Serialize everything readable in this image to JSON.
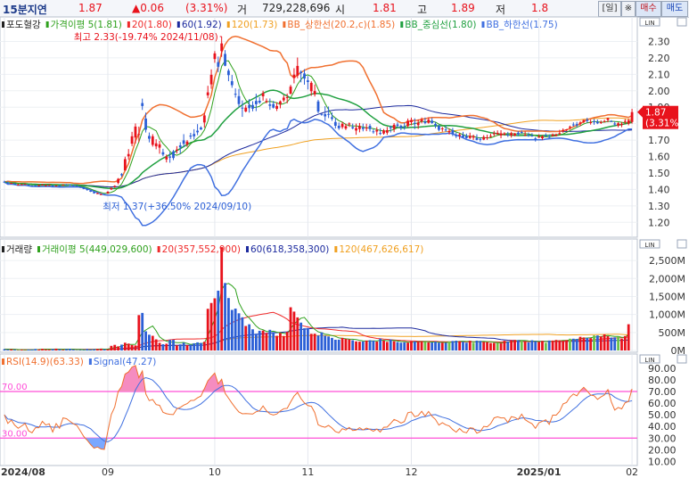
{
  "header": {
    "period": "15분지연",
    "price": "1.87",
    "change": "▲0.06",
    "change_pct": "(3.31%)",
    "volume_label": "거",
    "volume_value": "729,228,696",
    "open_label": "시",
    "open_value": "1.81",
    "high_label": "고",
    "high_value": "1.89",
    "low_label": "저",
    "low_value": "1.8",
    "buttons": [
      "[일]",
      "※",
      "매수",
      "매도"
    ]
  },
  "colors": {
    "up": "#e8121c",
    "down": "#2b5fd6",
    "ma5": "#2fa11d",
    "ma20": "#ef2a2a",
    "ma60": "#1c2a9e",
    "ma120": "#f0a020",
    "bb_upper": "#f07030",
    "bb_mid": "#20a040",
    "bb_lower": "#4070e0",
    "rsi": "#f07030",
    "signal": "#4070e0",
    "rsi_band": "#ff4fd8",
    "rsi_fill": "#f58cc0",
    "rsi_fill_low": "#7aa8ff",
    "vol_ma5": "#2fa11d"
  },
  "price_panel": {
    "legend": [
      {
        "text": "포도혈강",
        "color": "#222"
      },
      {
        "text": "가격이평 5(1.81)",
        "color": "#2fa11d"
      },
      {
        "text": "20(1.80)",
        "color": "#ef2a2a"
      },
      {
        "text": "60(1.92)",
        "color": "#1c2a9e"
      },
      {
        "text": "120(1.73)",
        "color": "#f0a020"
      },
      {
        "text": "BB_상한선(20.2,c)(1.85)",
        "color": "#f07030"
      },
      {
        "text": "BB_중심선(1.80)",
        "color": "#20a040"
      },
      {
        "text": "BB_하한선(1.75)",
        "color": "#4070e0"
      }
    ],
    "high_annotation": "최고 2.33(-19.74% 2024/11/08)",
    "low_annotation": "최저 1.37(+36.50% 2024/09/10)",
    "current_label": "1.87",
    "current_pct": "(3.31%)",
    "y_ticks": [
      "2.30",
      "2.20",
      "2.10",
      "2.00",
      "1.90",
      "1.80",
      "1.70",
      "1.60",
      "1.50",
      "1.40",
      "1.30",
      "1.20"
    ],
    "y_values": [
      2.3,
      2.2,
      2.1,
      2.0,
      1.9,
      1.8,
      1.7,
      1.6,
      1.5,
      1.4,
      1.3,
      1.2
    ],
    "ylim": [
      1.12,
      2.4
    ],
    "corner": "LIN"
  },
  "volume_panel": {
    "legend": [
      {
        "text": "거래량",
        "color": "#222"
      },
      {
        "text": "거래이평 5(449,029,600)",
        "color": "#2fa11d"
      },
      {
        "text": "20(357,552,900)",
        "color": "#ef2a2a"
      },
      {
        "text": "60(618,358,300)",
        "color": "#1c2a9e"
      },
      {
        "text": "120(467,626,617)",
        "color": "#f0a020"
      }
    ],
    "y_ticks": [
      "2,500M",
      "2,000M",
      "1,500M",
      "1,000M",
      "500M",
      "0M"
    ],
    "y_values": [
      2500,
      2000,
      1500,
      1000,
      500,
      0
    ],
    "ylim": [
      0,
      2900
    ],
    "corner": "LIN"
  },
  "rsi_panel": {
    "legend": [
      {
        "text": "RSI(14.9)(63.33)",
        "color": "#f07030"
      },
      {
        "text": "Signal(47.27)",
        "color": "#4070e0"
      }
    ],
    "band_high_label": "70.00",
    "band_low_label": "30.00",
    "y_ticks": [
      "90.00",
      "80.00",
      "70.00",
      "60.00",
      "50.00",
      "40.00",
      "30.00",
      "20.00",
      "10.00"
    ],
    "y_values": [
      90,
      80,
      70,
      60,
      50,
      40,
      30,
      20,
      10
    ],
    "ylim": [
      8,
      96
    ],
    "corner": "LIN"
  },
  "x_axis": {
    "labels": [
      {
        "text": "2024/08",
        "index": 0
      },
      {
        "text": "09",
        "index": 30
      },
      {
        "text": "10",
        "index": 61
      },
      {
        "text": "11",
        "index": 88
      },
      {
        "text": "12",
        "index": 118
      },
      {
        "text": "2025/01",
        "index": 155
      },
      {
        "text": "02",
        "index": 182
      }
    ]
  },
  "chart_data": {
    "type": "candlestick",
    "ohlc": [
      [
        1.447,
        1.453,
        1.439,
        1.445
      ],
      [
        1.442,
        1.448,
        1.433,
        1.436
      ],
      [
        1.437,
        1.44,
        1.434,
        1.439
      ],
      [
        1.435,
        1.438,
        1.43,
        1.433
      ],
      [
        1.428,
        1.434,
        1.425,
        1.429
      ],
      [
        1.43,
        1.434,
        1.428,
        1.431
      ],
      [
        1.431,
        1.434,
        1.429,
        1.433
      ],
      [
        1.428,
        1.432,
        1.422,
        1.424
      ],
      [
        1.423,
        1.425,
        1.42,
        1.421
      ],
      [
        1.426,
        1.427,
        1.423,
        1.425
      ],
      [
        1.423,
        1.431,
        1.42,
        1.425
      ],
      [
        1.427,
        1.433,
        1.424,
        1.43
      ],
      [
        1.424,
        1.431,
        1.418,
        1.426
      ],
      [
        1.425,
        1.43,
        1.423,
        1.427
      ],
      [
        1.424,
        1.427,
        1.415,
        1.417
      ],
      [
        1.419,
        1.426,
        1.417,
        1.424
      ],
      [
        1.424,
        1.427,
        1.416,
        1.418
      ],
      [
        1.425,
        1.431,
        1.424,
        1.428
      ],
      [
        1.43,
        1.433,
        1.425,
        1.427
      ],
      [
        1.427,
        1.431,
        1.422,
        1.424
      ],
      [
        1.425,
        1.429,
        1.42,
        1.421
      ],
      [
        1.422,
        1.426,
        1.416,
        1.419
      ],
      [
        1.417,
        1.422,
        1.408,
        1.412
      ],
      [
        1.414,
        1.416,
        1.401,
        1.403
      ],
      [
        1.402,
        1.406,
        1.392,
        1.396
      ],
      [
        1.393,
        1.395,
        1.384,
        1.386
      ],
      [
        1.384,
        1.39,
        1.374,
        1.376
      ],
      [
        1.375,
        1.381,
        1.372,
        1.377
      ],
      [
        1.371,
        1.376,
        1.367,
        1.371
      ],
      [
        1.371,
        1.373,
        1.37,
        1.37
      ],
      [
        1.376,
        1.389,
        1.373,
        1.386
      ],
      [
        1.4,
        1.412,
        1.396,
        1.408
      ],
      [
        1.416,
        1.425,
        1.41,
        1.421
      ],
      [
        1.44,
        1.469,
        1.431,
        1.464
      ],
      [
        1.493,
        1.499,
        1.476,
        1.486
      ],
      [
        1.515,
        1.599,
        1.515,
        1.584
      ],
      [
        1.601,
        1.645,
        1.58,
        1.615
      ],
      [
        1.678,
        1.75,
        1.663,
        1.723
      ],
      [
        1.715,
        1.801,
        1.679,
        1.782
      ],
      [
        1.735,
        1.782,
        1.687,
        1.737
      ],
      [
        1.925,
        1.952,
        1.883,
        1.907
      ],
      [
        1.831,
        1.867,
        1.746,
        1.763
      ],
      [
        1.725,
        1.746,
        1.686,
        1.708
      ],
      [
        1.671,
        1.736,
        1.66,
        1.723
      ],
      [
        1.662,
        1.705,
        1.644,
        1.68
      ],
      [
        1.654,
        1.695,
        1.617,
        1.674
      ],
      [
        1.626,
        1.647,
        1.602,
        1.612
      ],
      [
        1.582,
        1.612,
        1.564,
        1.599
      ],
      [
        1.6,
        1.627,
        1.562,
        1.593
      ],
      [
        1.631,
        1.64,
        1.578,
        1.591
      ],
      [
        1.636,
        1.663,
        1.618,
        1.642
      ],
      [
        1.668,
        1.687,
        1.617,
        1.655
      ],
      [
        1.698,
        1.736,
        1.656,
        1.677
      ],
      [
        1.673,
        1.7,
        1.659,
        1.691
      ],
      [
        1.727,
        1.744,
        1.706,
        1.721
      ],
      [
        1.737,
        1.766,
        1.703,
        1.723
      ],
      [
        1.757,
        1.797,
        1.73,
        1.747
      ],
      [
        1.776,
        1.784,
        1.762,
        1.764
      ],
      [
        1.807,
        1.866,
        1.775,
        1.85
      ],
      [
        1.972,
        2.03,
        1.954,
        1.99
      ],
      [
        2.039,
        2.13,
        2.012,
        2.097
      ],
      [
        2.193,
        2.241,
        2.17,
        2.227
      ],
      [
        2.174,
        2.208,
        2.113,
        2.146
      ],
      [
        2.241,
        2.33,
        2.206,
        2.288
      ],
      [
        2.224,
        2.247,
        2.149,
        2.152
      ],
      [
        2.122,
        2.133,
        2.058,
        2.095
      ],
      [
        2.058,
        2.096,
        2.018,
        2.034
      ],
      [
        1.982,
        2.014,
        1.958,
        1.976
      ],
      [
        1.967,
        2.011,
        1.899,
        1.919
      ],
      [
        1.897,
        1.941,
        1.841,
        1.894
      ],
      [
        1.874,
        1.913,
        1.869,
        1.897
      ],
      [
        1.913,
        1.949,
        1.867,
        1.894
      ],
      [
        1.913,
        1.936,
        1.875,
        1.891
      ],
      [
        1.938,
        1.982,
        1.876,
        1.918
      ],
      [
        1.939,
        1.961,
        1.92,
        1.928
      ],
      [
        1.966,
        2.0,
        1.94,
        1.986
      ],
      [
        1.931,
        1.953,
        1.924,
        1.938
      ],
      [
        1.917,
        1.953,
        1.884,
        1.908
      ],
      [
        1.919,
        1.938,
        1.892,
        1.897
      ],
      [
        1.89,
        1.929,
        1.877,
        1.907
      ],
      [
        1.919,
        1.941,
        1.893,
        1.935
      ],
      [
        1.942,
        1.973,
        1.932,
        1.958
      ],
      [
        1.958,
        1.983,
        1.923,
        1.961
      ],
      [
        1.981,
        2.036,
        1.979,
        2.025
      ],
      [
        2.077,
        2.137,
        2.045,
        2.098
      ],
      [
        2.092,
        2.202,
        2.076,
        2.151
      ],
      [
        2.115,
        2.124,
        2.051,
        2.107
      ],
      [
        2.105,
        2.131,
        2.037,
        2.074
      ],
      [
        2.063,
        2.089,
        2.008,
        2.053
      ],
      [
        1.997,
        2.058,
        1.969,
        2.048
      ],
      [
        1.978,
        2.038,
        1.965,
        1.998
      ],
      [
        1.935,
        1.945,
        1.863,
        1.873
      ],
      [
        1.859,
        1.861,
        1.848,
        1.854
      ],
      [
        1.858,
        1.906,
        1.816,
        1.844
      ],
      [
        1.859,
        1.904,
        1.834,
        1.858
      ],
      [
        1.839,
        1.868,
        1.817,
        1.829
      ],
      [
        1.81,
        1.836,
        1.77,
        1.787
      ],
      [
        1.787,
        1.807,
        1.762,
        1.772
      ],
      [
        1.779,
        1.811,
        1.768,
        1.799
      ],
      [
        1.77,
        1.8,
        1.761,
        1.785
      ],
      [
        1.795,
        1.808,
        1.78,
        1.801
      ],
      [
        1.779,
        1.8,
        1.766,
        1.771
      ],
      [
        1.758,
        1.8,
        1.732,
        1.773
      ],
      [
        1.767,
        1.804,
        1.747,
        1.786
      ],
      [
        1.776,
        1.8,
        1.753,
        1.767
      ],
      [
        1.77,
        1.799,
        1.754,
        1.776
      ],
      [
        1.787,
        1.798,
        1.752,
        1.767
      ],
      [
        1.753,
        1.767,
        1.739,
        1.751
      ],
      [
        1.752,
        1.779,
        1.728,
        1.761
      ],
      [
        1.743,
        1.772,
        1.73,
        1.738
      ],
      [
        1.74,
        1.767,
        1.733,
        1.759
      ],
      [
        1.745,
        1.78,
        1.732,
        1.76
      ],
      [
        1.778,
        1.788,
        1.746,
        1.775
      ],
      [
        1.768,
        1.803,
        1.748,
        1.793
      ],
      [
        1.795,
        1.808,
        1.774,
        1.786
      ],
      [
        1.787,
        1.794,
        1.76,
        1.774
      ],
      [
        1.781,
        1.806,
        1.763,
        1.78
      ],
      [
        1.786,
        1.831,
        1.776,
        1.818
      ],
      [
        1.809,
        1.837,
        1.79,
        1.822
      ],
      [
        1.805,
        1.832,
        1.767,
        1.801
      ],
      [
        1.791,
        1.826,
        1.768,
        1.806
      ],
      [
        1.813,
        1.837,
        1.802,
        1.824
      ],
      [
        1.813,
        1.837,
        1.796,
        1.804
      ],
      [
        1.805,
        1.838,
        1.8,
        1.824
      ],
      [
        1.818,
        1.835,
        1.799,
        1.804
      ],
      [
        1.798,
        1.811,
        1.772,
        1.79
      ],
      [
        1.786,
        1.794,
        1.753,
        1.762
      ],
      [
        1.769,
        1.78,
        1.751,
        1.771
      ],
      [
        1.764,
        1.789,
        1.75,
        1.761
      ],
      [
        1.748,
        1.77,
        1.733,
        1.755
      ],
      [
        1.761,
        1.774,
        1.724,
        1.737
      ],
      [
        1.731,
        1.746,
        1.712,
        1.723
      ],
      [
        1.726,
        1.745,
        1.704,
        1.734
      ],
      [
        1.73,
        1.75,
        1.712,
        1.717
      ],
      [
        1.725,
        1.739,
        1.709,
        1.712
      ],
      [
        1.713,
        1.745,
        1.707,
        1.726
      ],
      [
        1.715,
        1.733,
        1.701,
        1.724
      ],
      [
        1.713,
        1.735,
        1.698,
        1.701
      ],
      [
        1.707,
        1.716,
        1.69,
        1.705
      ],
      [
        1.703,
        1.73,
        1.699,
        1.719
      ],
      [
        1.715,
        1.733,
        1.701,
        1.717
      ],
      [
        1.719,
        1.739,
        1.716,
        1.725
      ],
      [
        1.736,
        1.756,
        1.723,
        1.741
      ],
      [
        1.735,
        1.759,
        1.732,
        1.744
      ],
      [
        1.728,
        1.76,
        1.711,
        1.741
      ],
      [
        1.733,
        1.748,
        1.727,
        1.741
      ],
      [
        1.733,
        1.75,
        1.719,
        1.728
      ],
      [
        1.729,
        1.751,
        1.715,
        1.742
      ],
      [
        1.727,
        1.743,
        1.723,
        1.74
      ],
      [
        1.745,
        1.755,
        1.724,
        1.735
      ],
      [
        1.749,
        1.759,
        1.738,
        1.747
      ],
      [
        1.733,
        1.752,
        1.724,
        1.733
      ],
      [
        1.73,
        1.746,
        1.72,
        1.727
      ],
      [
        1.728,
        1.742,
        1.72,
        1.722
      ],
      [
        1.71,
        1.719,
        1.691,
        1.709
      ],
      [
        1.716,
        1.735,
        1.714,
        1.72
      ],
      [
        1.711,
        1.73,
        1.7,
        1.723
      ],
      [
        1.728,
        1.741,
        1.722,
        1.726
      ],
      [
        1.721,
        1.734,
        1.71,
        1.715
      ],
      [
        1.724,
        1.74,
        1.722,
        1.734
      ],
      [
        1.726,
        1.739,
        1.722,
        1.734
      ],
      [
        1.742,
        1.762,
        1.731,
        1.742
      ],
      [
        1.753,
        1.771,
        1.745,
        1.761
      ],
      [
        1.762,
        1.767,
        1.755,
        1.765
      ],
      [
        1.778,
        1.788,
        1.763,
        1.781
      ],
      [
        1.795,
        1.808,
        1.782,
        1.792
      ],
      [
        1.797,
        1.811,
        1.778,
        1.789
      ],
      [
        1.799,
        1.815,
        1.785,
        1.807
      ],
      [
        1.81,
        1.824,
        1.803,
        1.822
      ],
      [
        1.824,
        1.836,
        1.806,
        1.816
      ],
      [
        1.808,
        1.825,
        1.794,
        1.809
      ],
      [
        1.814,
        1.828,
        1.793,
        1.808
      ],
      [
        1.811,
        1.825,
        1.797,
        1.802
      ],
      [
        1.806,
        1.819,
        1.798,
        1.809
      ],
      [
        1.812,
        1.824,
        1.808,
        1.815
      ],
      [
        1.822,
        1.836,
        1.808,
        1.833
      ],
      [
        1.815,
        1.821,
        1.811,
        1.812
      ],
      [
        1.801,
        1.814,
        1.787,
        1.795
      ],
      [
        1.788,
        1.809,
        1.777,
        1.802
      ],
      [
        1.792,
        1.81,
        1.778,
        1.799
      ],
      [
        1.812,
        1.828,
        1.798,
        1.816
      ],
      [
        1.8,
        1.83,
        1.79,
        1.82
      ],
      [
        1.81,
        1.89,
        1.8,
        1.87
      ]
    ],
    "volume_M": [
      36,
      23,
      30,
      22,
      9,
      23,
      10,
      25,
      23,
      43,
      30,
      45,
      29,
      23,
      40,
      52,
      33,
      13,
      39,
      48,
      24,
      7,
      14,
      14,
      42,
      25,
      36,
      43,
      51,
      34,
      33,
      129,
      156,
      114,
      162,
      215,
      191,
      152,
      140,
      983,
      1044,
      533,
      438,
      408,
      309,
      212,
      174,
      187,
      293,
      296,
      144,
      170,
      217,
      149,
      160,
      200,
      225,
      210,
      242,
      1158,
      1320,
      1450,
      1662,
      2872,
      1875,
      1458,
      1127,
      1164,
      1033,
      922,
      681,
      728,
      589,
      466,
      547,
      554,
      489,
      575,
      512,
      408,
      485,
      403,
      515,
      1201,
      1080,
      920,
      774,
      617,
      623,
      463,
      466,
      418,
      502,
      411,
      391,
      350,
      298,
      300,
      351,
      322,
      307,
      284,
      252,
      245,
      250,
      276,
      285,
      274,
      248,
      329,
      276,
      238,
      306,
      259,
      235,
      217,
      226,
      218,
      255,
      253,
      244,
      245,
      237,
      226,
      222,
      245,
      216,
      217,
      214,
      253,
      264,
      272,
      259,
      242,
      216,
      272,
      215,
      274,
      268,
      235,
      234,
      207,
      210,
      209,
      204,
      269,
      251,
      289,
      294,
      287,
      270,
      239,
      227,
      284,
      255,
      238,
      265,
      213,
      276,
      276,
      293,
      282,
      267,
      288,
      327,
      327,
      320,
      380,
      362,
      349,
      344,
      418,
      417,
      391,
      448,
      398,
      358,
      365,
      385,
      327,
      401,
      729
    ],
    "ylim": [
      1.12,
      2.4
    ]
  }
}
